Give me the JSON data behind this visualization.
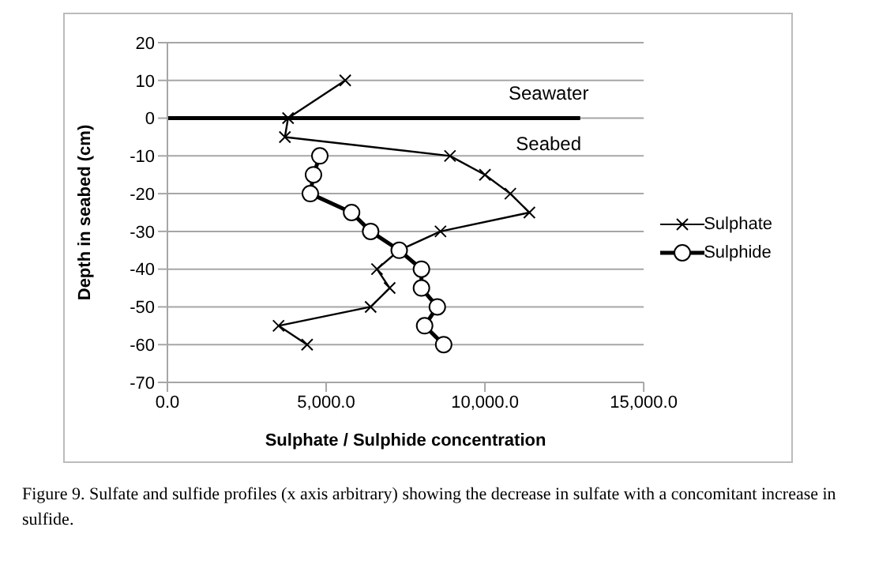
{
  "chart_data": {
    "type": "line",
    "xlabel": "Sulphate / Sulphide concentration",
    "ylabel": "Depth in seabed (cm)",
    "xlim": [
      0,
      15000
    ],
    "xticks": [
      {
        "value": 0,
        "label": "0.0"
      },
      {
        "value": 5000,
        "label": "5,000.0"
      },
      {
        "value": 10000,
        "label": "10,000.0"
      },
      {
        "value": 15000,
        "label": "15,000.0"
      }
    ],
    "ylim": [
      -70,
      20
    ],
    "yticks": [
      -70,
      -60,
      -50,
      -40,
      -30,
      -20,
      -10,
      0,
      10,
      20
    ],
    "grid": "y",
    "legend": "right",
    "series": [
      {
        "name": "Sulphate",
        "color": "#000000",
        "marker": "cross",
        "x": [
          5600,
          3800,
          3700,
          8900,
          10000,
          10800,
          11400,
          8600,
          7300,
          6600,
          7000,
          6400,
          3500,
          4400
        ],
        "values": [
          10,
          0,
          -5,
          -10,
          -15,
          -20,
          -25,
          -30,
          -35,
          -40,
          -45,
          -50,
          -55,
          -60
        ]
      },
      {
        "name": "Sulphide",
        "color": "#000000",
        "marker": "circle",
        "x": [
          4800,
          4600,
          4500,
          5800,
          6400,
          7300,
          8000,
          8000,
          8500,
          8100,
          8700
        ],
        "values": [
          -10,
          -15,
          -20,
          -25,
          -30,
          -35,
          -40,
          -45,
          -50,
          -55,
          -60
        ]
      },
      {
        "color": "#000000",
        "marker": "none",
        "x": [
          0,
          13000
        ],
        "values": [
          0,
          0
        ]
      }
    ],
    "annotations": [
      "Seawater",
      "Seabed",
      "Figure 9. Sulfate and sulfide profiles (x axis arbitrary) showing the decrease in sulfate with a concomitant increase in sulfide."
    ]
  }
}
